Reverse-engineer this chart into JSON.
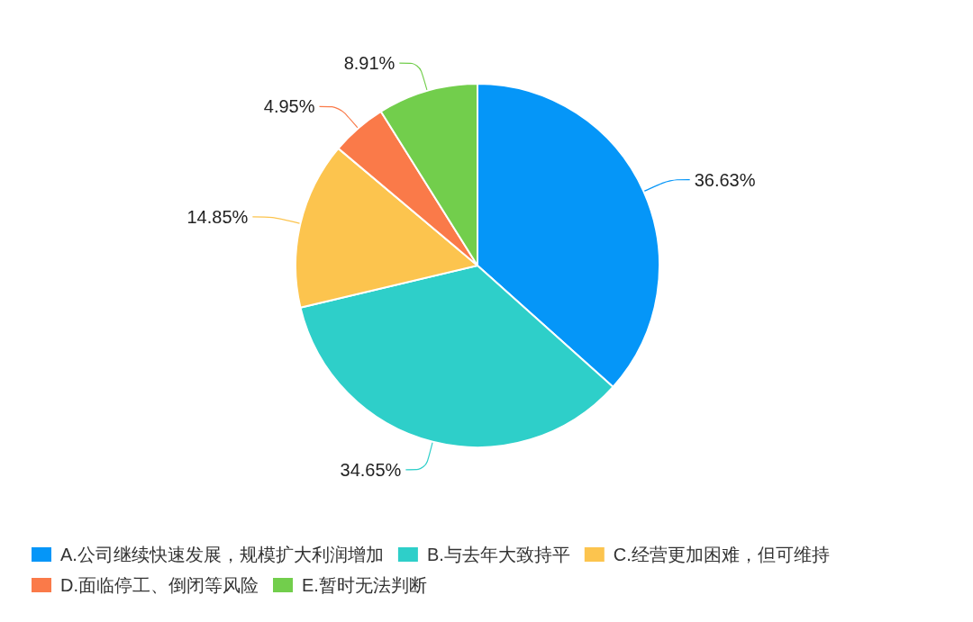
{
  "chart_data": {
    "type": "pie",
    "categories": [
      "A.公司继续快速发展，规模扩大利润增加",
      "B.与去年大致持平",
      "C.经营更加困难，但可维持",
      "D.面临停工、倒闭等风险",
      "E.暂时无法判断"
    ],
    "values": [
      36.63,
      34.65,
      14.85,
      4.95,
      8.91
    ],
    "colors": [
      "#0596f8",
      "#2ecfc9",
      "#fcc44e",
      "#fa7a49",
      "#72ce4c"
    ],
    "value_labels": [
      "36.63%",
      "34.65%",
      "14.85%",
      "4.95%",
      "8.91%"
    ],
    "legend": "bottom"
  }
}
